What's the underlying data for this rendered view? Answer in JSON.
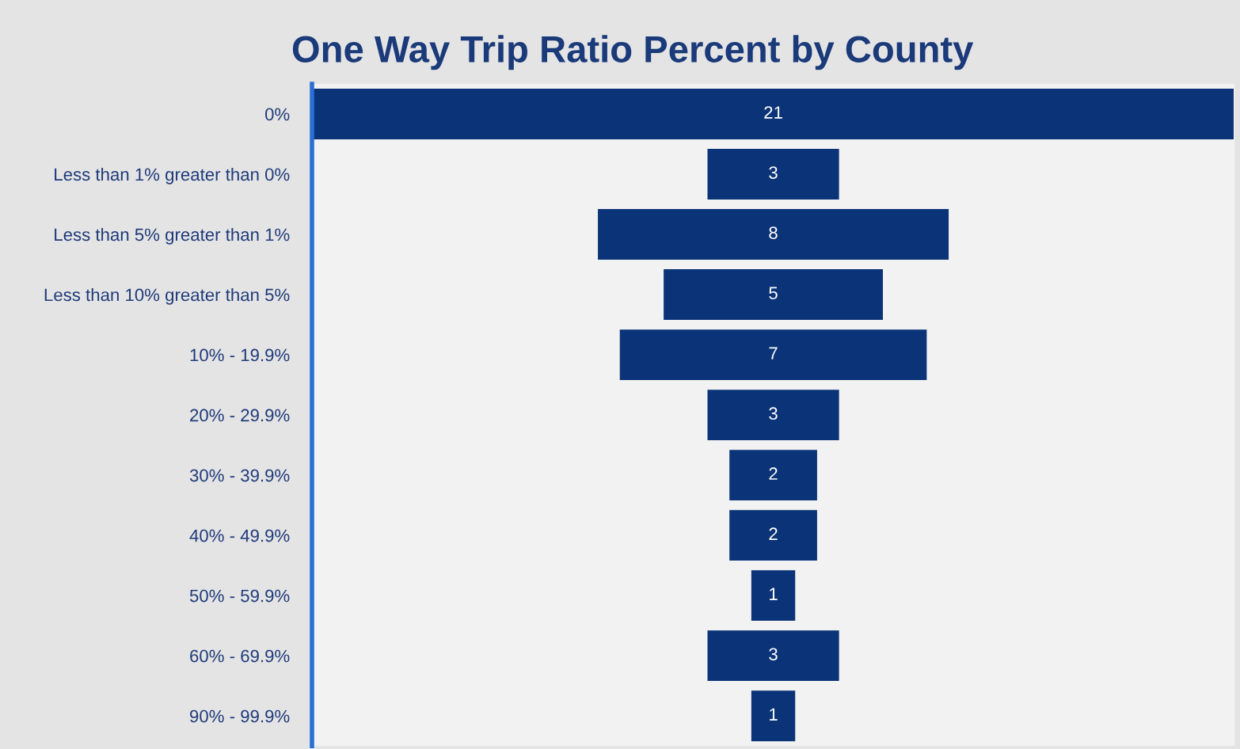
{
  "chart_data": {
    "type": "other",
    "title": "One Way Trip Ratio Percent by County",
    "categories": [
      "0%",
      "Less than 1% greater than 0%",
      "Less than 5% greater than 1%",
      "Less than 10% greater than 5%",
      "10% - 19.9%",
      "20% - 29.9%",
      "30% - 39.9%",
      "40% - 49.9%",
      "50% - 59.9%",
      "60% - 69.9%",
      "90% - 99.9%"
    ],
    "values": [
      21,
      3,
      8,
      5,
      7,
      3,
      2,
      2,
      1,
      3,
      1
    ],
    "color": "#0b3478",
    "data_labels": true
  }
}
